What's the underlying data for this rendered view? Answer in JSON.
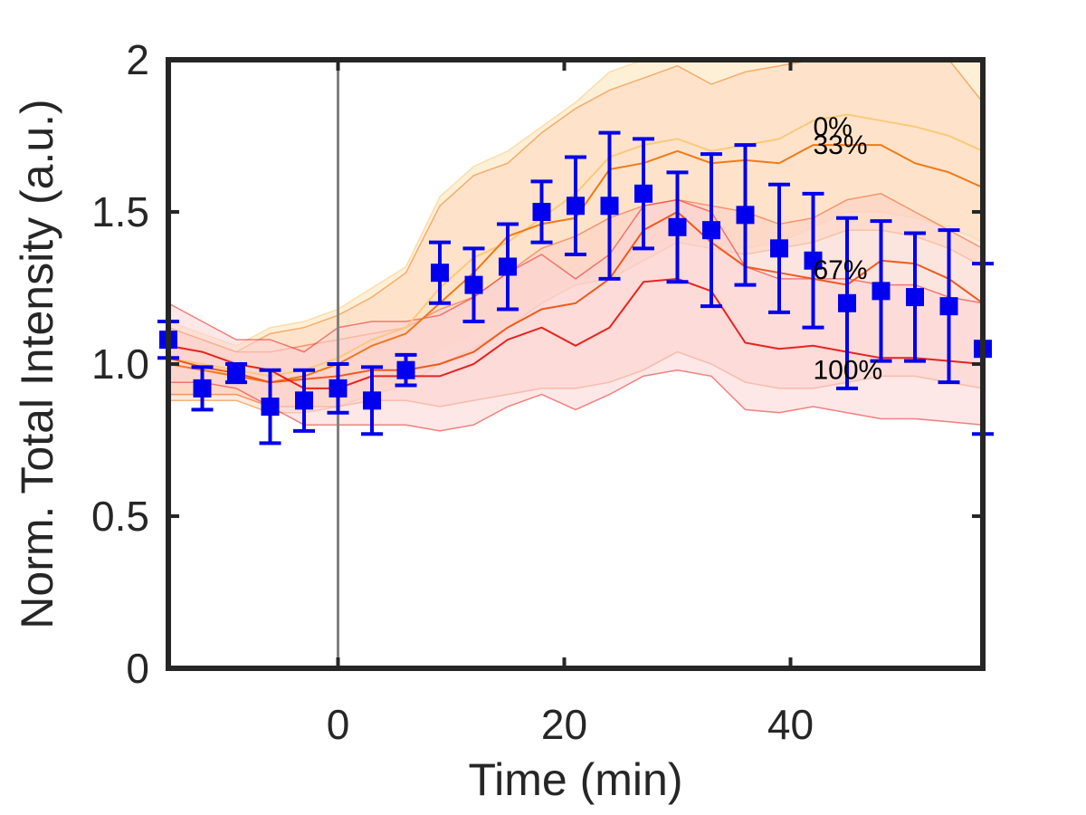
{
  "chart_data": {
    "type": "line",
    "title": "",
    "xlabel": "Time (min)",
    "ylabel": "Norm. Total Intensity (a.u.)",
    "xlim": [
      -15,
      57
    ],
    "ylim": [
      0,
      2
    ],
    "x_ticks": [
      0,
      20,
      40
    ],
    "x_tick_labels": [
      "0",
      "20",
      "40"
    ],
    "y_ticks": [
      0,
      0.5,
      1.0,
      1.5,
      2
    ],
    "y_tick_labels": [
      "0",
      "0.5",
      "1.0",
      "1.5",
      "2"
    ],
    "grid": false,
    "reference_line_x": 0,
    "measured": {
      "marker": "square",
      "x": [
        -15,
        -12,
        -9,
        -6,
        -3,
        0,
        3,
        6,
        9,
        12,
        15,
        18,
        21,
        24,
        27,
        30,
        33,
        36,
        39,
        42,
        45,
        48,
        51,
        54,
        57
      ],
      "y": [
        1.08,
        0.92,
        0.97,
        0.86,
        0.88,
        0.92,
        0.88,
        0.98,
        1.3,
        1.26,
        1.32,
        1.5,
        1.52,
        1.52,
        1.56,
        1.45,
        1.44,
        1.49,
        1.38,
        1.34,
        1.2,
        1.24,
        1.22,
        1.19,
        1.05
      ],
      "err": [
        0.06,
        0.07,
        0.03,
        0.12,
        0.1,
        0.08,
        0.11,
        0.05,
        0.1,
        0.12,
        0.14,
        0.1,
        0.16,
        0.24,
        0.18,
        0.18,
        0.25,
        0.23,
        0.21,
        0.22,
        0.28,
        0.23,
        0.21,
        0.25,
        0.28
      ]
    },
    "model_x": [
      -15,
      -12,
      -9,
      -6,
      -3,
      0,
      3,
      6,
      9,
      12,
      15,
      18,
      21,
      24,
      27,
      30,
      33,
      36,
      39,
      42,
      45,
      48,
      51,
      54,
      57
    ],
    "series": [
      {
        "name": "0%",
        "color": "#fbc97a",
        "band_color": "#fde3b6",
        "mean": [
          1.02,
          1.0,
          0.98,
          0.96,
          0.98,
          1.02,
          1.08,
          1.12,
          1.25,
          1.35,
          1.4,
          1.48,
          1.56,
          1.68,
          1.72,
          1.74,
          1.7,
          1.72,
          1.74,
          1.8,
          1.82,
          1.8,
          1.78,
          1.75,
          1.7
        ],
        "upper": [
          1.14,
          1.1,
          1.06,
          1.12,
          1.14,
          1.18,
          1.25,
          1.32,
          1.55,
          1.65,
          1.7,
          1.78,
          1.86,
          1.96,
          2.0,
          2.0,
          2.0,
          2.0,
          2.0,
          2.0,
          2.0,
          2.0,
          2.0,
          2.0,
          2.0
        ],
        "lower": [
          0.9,
          0.9,
          0.9,
          0.86,
          0.86,
          0.88,
          0.92,
          0.95,
          1.05,
          1.1,
          1.16,
          1.22,
          1.28,
          1.3,
          1.38,
          1.42,
          1.4,
          1.38,
          1.4,
          1.45,
          1.5,
          1.5,
          1.48,
          1.45,
          1.4
        ]
      },
      {
        "name": "33%",
        "color": "#f07a18",
        "band_color": "#fdd8c0",
        "mean": [
          1.0,
          0.98,
          0.96,
          0.94,
          0.96,
          1.0,
          1.06,
          1.1,
          1.2,
          1.3,
          1.42,
          1.46,
          1.48,
          1.64,
          1.66,
          1.7,
          1.66,
          1.67,
          1.66,
          1.72,
          1.72,
          1.72,
          1.66,
          1.63,
          1.58
        ],
        "upper": [
          1.12,
          1.08,
          1.04,
          1.1,
          1.12,
          1.16,
          1.22,
          1.3,
          1.52,
          1.62,
          1.66,
          1.76,
          1.84,
          1.9,
          1.94,
          1.98,
          1.92,
          1.96,
          1.98,
          2.0,
          2.0,
          2.0,
          2.0,
          2.0,
          1.86
        ],
        "lower": [
          0.88,
          0.88,
          0.88,
          0.84,
          0.84,
          0.86,
          0.9,
          0.93,
          1.0,
          1.05,
          1.12,
          1.2,
          1.26,
          1.28,
          1.34,
          1.4,
          1.38,
          1.36,
          1.38,
          1.4,
          1.44,
          1.44,
          1.42,
          1.38,
          1.32
        ]
      },
      {
        "name": "67%",
        "color": "#f05a1e",
        "band_color": "#fbd0c4",
        "mean": [
          1.02,
          0.99,
          0.97,
          0.94,
          0.95,
          0.96,
          0.98,
          0.98,
          1.0,
          1.04,
          1.12,
          1.18,
          1.2,
          1.28,
          1.44,
          1.5,
          1.4,
          1.32,
          1.3,
          1.28,
          1.26,
          1.34,
          1.33,
          1.28,
          1.2
        ],
        "upper": [
          1.12,
          1.08,
          1.04,
          1.04,
          1.06,
          1.08,
          1.1,
          1.12,
          1.18,
          1.22,
          1.3,
          1.38,
          1.42,
          1.48,
          1.52,
          1.54,
          1.52,
          1.5,
          1.46,
          1.48,
          1.54,
          1.56,
          1.5,
          1.44,
          1.38
        ],
        "lower": [
          0.9,
          0.9,
          0.9,
          0.86,
          0.86,
          0.86,
          0.88,
          0.88,
          0.86,
          0.88,
          0.9,
          0.92,
          0.92,
          0.94,
          0.98,
          1.04,
          1.0,
          0.94,
          0.92,
          0.92,
          0.94,
          0.96,
          0.96,
          0.94,
          0.92
        ]
      },
      {
        "name": "100%",
        "color": "#e8231e",
        "band_color": "#fbd4d4",
        "mean": [
          1.06,
          1.04,
          1.0,
          0.98,
          0.92,
          0.92,
          0.96,
          0.96,
          0.96,
          1.0,
          1.08,
          1.12,
          1.06,
          1.12,
          1.27,
          1.28,
          1.24,
          1.07,
          1.05,
          1.06,
          1.04,
          1.02,
          1.02,
          1.01,
          1.0
        ],
        "upper": [
          1.2,
          1.14,
          1.08,
          1.08,
          1.04,
          1.12,
          1.14,
          1.14,
          1.16,
          1.22,
          1.3,
          1.36,
          1.28,
          1.36,
          1.52,
          1.54,
          1.5,
          1.32,
          1.28,
          1.28,
          1.28,
          1.26,
          1.26,
          1.22,
          1.2
        ],
        "lower": [
          0.94,
          0.94,
          0.92,
          0.86,
          0.8,
          0.8,
          0.8,
          0.8,
          0.78,
          0.8,
          0.86,
          0.9,
          0.85,
          0.9,
          0.96,
          0.98,
          0.96,
          0.85,
          0.84,
          0.86,
          0.84,
          0.82,
          0.82,
          0.81,
          0.8
        ]
      }
    ],
    "curve_labels": [
      {
        "text": "0%",
        "x": 42,
        "y": 1.78
      },
      {
        "text": "33%",
        "x": 42,
        "y": 1.72
      },
      {
        "text": "67%",
        "x": 42,
        "y": 1.31
      },
      {
        "text": "100%",
        "x": 42,
        "y": 0.98
      }
    ],
    "marker_color": "#0000ee",
    "axis_color": "#262626",
    "ref_line_color": "#808080"
  }
}
